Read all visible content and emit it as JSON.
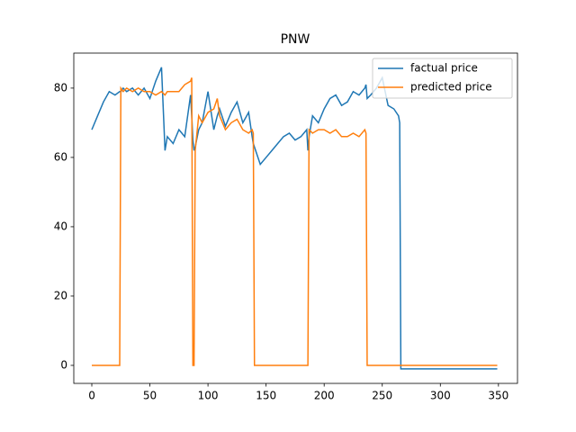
{
  "chart_data": {
    "type": "line",
    "title": "PNW",
    "x": [
      0,
      5,
      10,
      15,
      20,
      24,
      25,
      27,
      30,
      35,
      40,
      45,
      50,
      55,
      60,
      63,
      65,
      70,
      75,
      80,
      85,
      86,
      87,
      88,
      89,
      92,
      95,
      100,
      105,
      108,
      110,
      115,
      120,
      125,
      130,
      135,
      138,
      139,
      140,
      145,
      150,
      155,
      160,
      165,
      170,
      175,
      180,
      185,
      186,
      187,
      190,
      195,
      200,
      205,
      210,
      215,
      220,
      225,
      230,
      235,
      236,
      237,
      240,
      245,
      250,
      255,
      260,
      264,
      265,
      266,
      270,
      280,
      300,
      320,
      349
    ],
    "series": [
      {
        "name": "factual price",
        "color": "#1f77b4",
        "values": [
          68,
          72,
          76,
          79,
          78,
          79,
          79,
          80,
          79,
          80,
          78,
          80,
          77,
          82,
          86,
          62,
          66,
          64,
          68,
          66,
          78,
          72,
          65,
          62,
          63,
          68,
          70,
          79,
          68,
          72,
          74,
          69,
          73,
          76,
          70,
          73,
          66,
          64,
          63,
          58,
          60,
          62,
          64,
          66,
          67,
          65,
          66,
          68,
          62,
          66,
          72,
          70,
          74,
          77,
          78,
          75,
          76,
          79,
          78,
          80,
          81,
          77,
          78,
          80,
          83,
          75,
          74,
          72,
          70,
          -1,
          -1,
          -1,
          -1,
          -1,
          -1
        ]
      },
      {
        "name": "predicted price",
        "color": "#ff7f0e",
        "values": [
          0,
          0,
          0,
          0,
          0,
          0,
          80,
          79,
          80,
          79,
          80,
          79,
          79,
          78,
          79,
          78,
          79,
          79,
          79,
          81,
          82,
          83,
          0,
          0,
          62,
          72,
          70,
          73,
          74,
          77,
          72,
          68,
          70,
          71,
          68,
          67,
          68,
          67,
          0,
          0,
          0,
          0,
          0,
          0,
          0,
          0,
          0,
          0,
          0,
          68,
          67,
          68,
          68,
          67,
          68,
          66,
          66,
          67,
          66,
          68,
          67,
          0,
          0,
          0,
          0,
          0,
          0,
          0,
          0,
          0,
          0,
          0,
          0,
          0,
          0
        ]
      }
    ],
    "xlim": [
      -15.5,
      366.4
    ],
    "ylim": [
      -5.2,
      90.1
    ],
    "xticks": [
      0,
      50,
      100,
      150,
      200,
      250,
      300,
      350
    ],
    "yticks": [
      0,
      20,
      40,
      60,
      80
    ],
    "legend": "upper right"
  }
}
